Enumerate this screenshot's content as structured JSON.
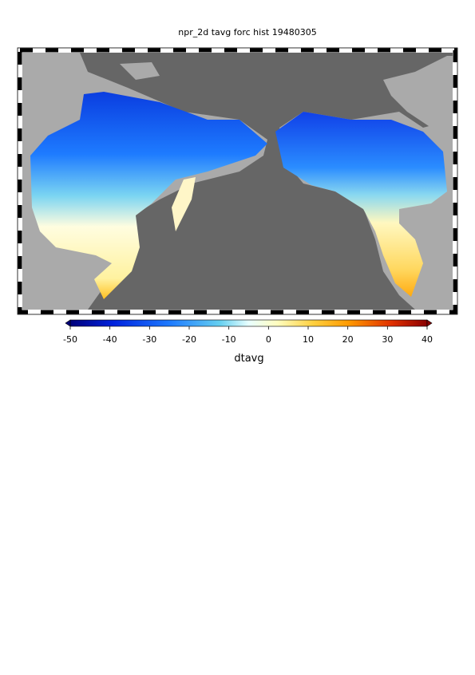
{
  "title": "npr_2d tavg forc hist 19480305",
  "colorbar": {
    "label": "dtavg",
    "lim": [
      -50,
      40
    ],
    "ticks": [
      -50,
      -40,
      -30,
      -20,
      -10,
      0,
      10,
      20,
      30,
      40
    ]
  }
}
